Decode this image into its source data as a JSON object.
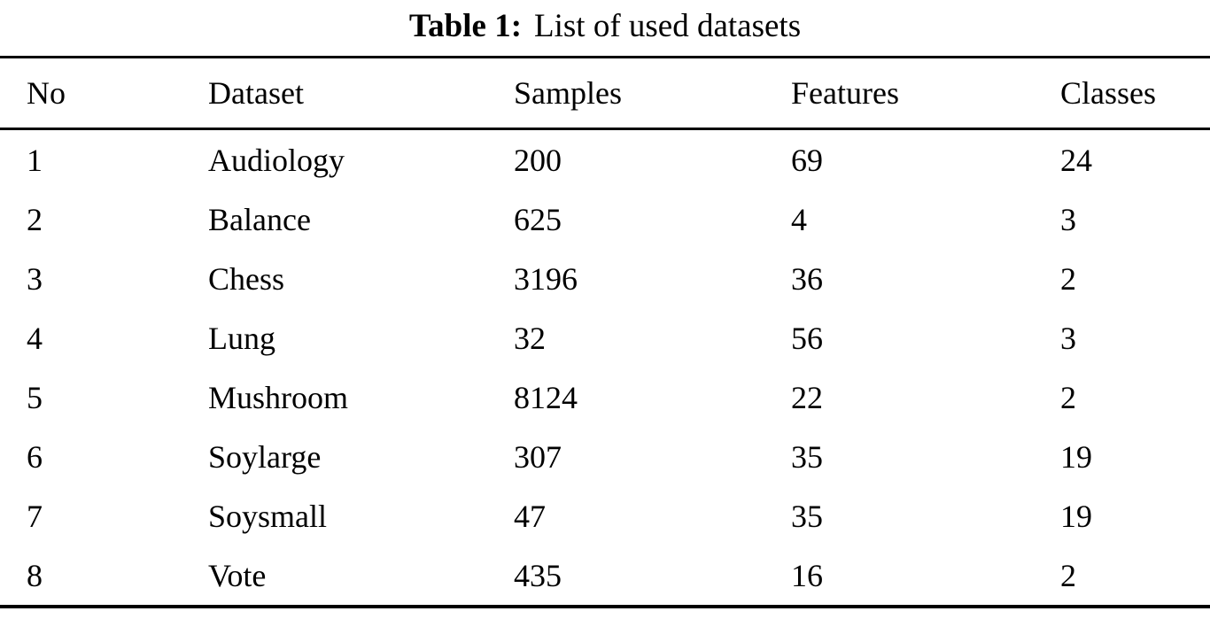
{
  "title": {
    "label": "Table 1:",
    "caption": "List of used datasets"
  },
  "table": {
    "columns": [
      "No",
      "Dataset",
      "Samples",
      "Features",
      "Classes"
    ],
    "rows": [
      [
        "1",
        "Audiology",
        "200",
        "69",
        "24"
      ],
      [
        "2",
        "Balance",
        "625",
        "4",
        "3"
      ],
      [
        "3",
        "Chess",
        "3196",
        "36",
        "2"
      ],
      [
        "4",
        "Lung",
        "32",
        "56",
        "3"
      ],
      [
        "5",
        "Mushroom",
        "8124",
        "22",
        "2"
      ],
      [
        "6",
        "Soylarge",
        "307",
        "35",
        "19"
      ],
      [
        "7",
        "Soysmall",
        "47",
        "35",
        "19"
      ],
      [
        "8",
        "Vote",
        "435",
        "16",
        "2"
      ]
    ]
  },
  "colors": {
    "background": "#ffffff",
    "text": "#000000",
    "rule": "#000000"
  }
}
